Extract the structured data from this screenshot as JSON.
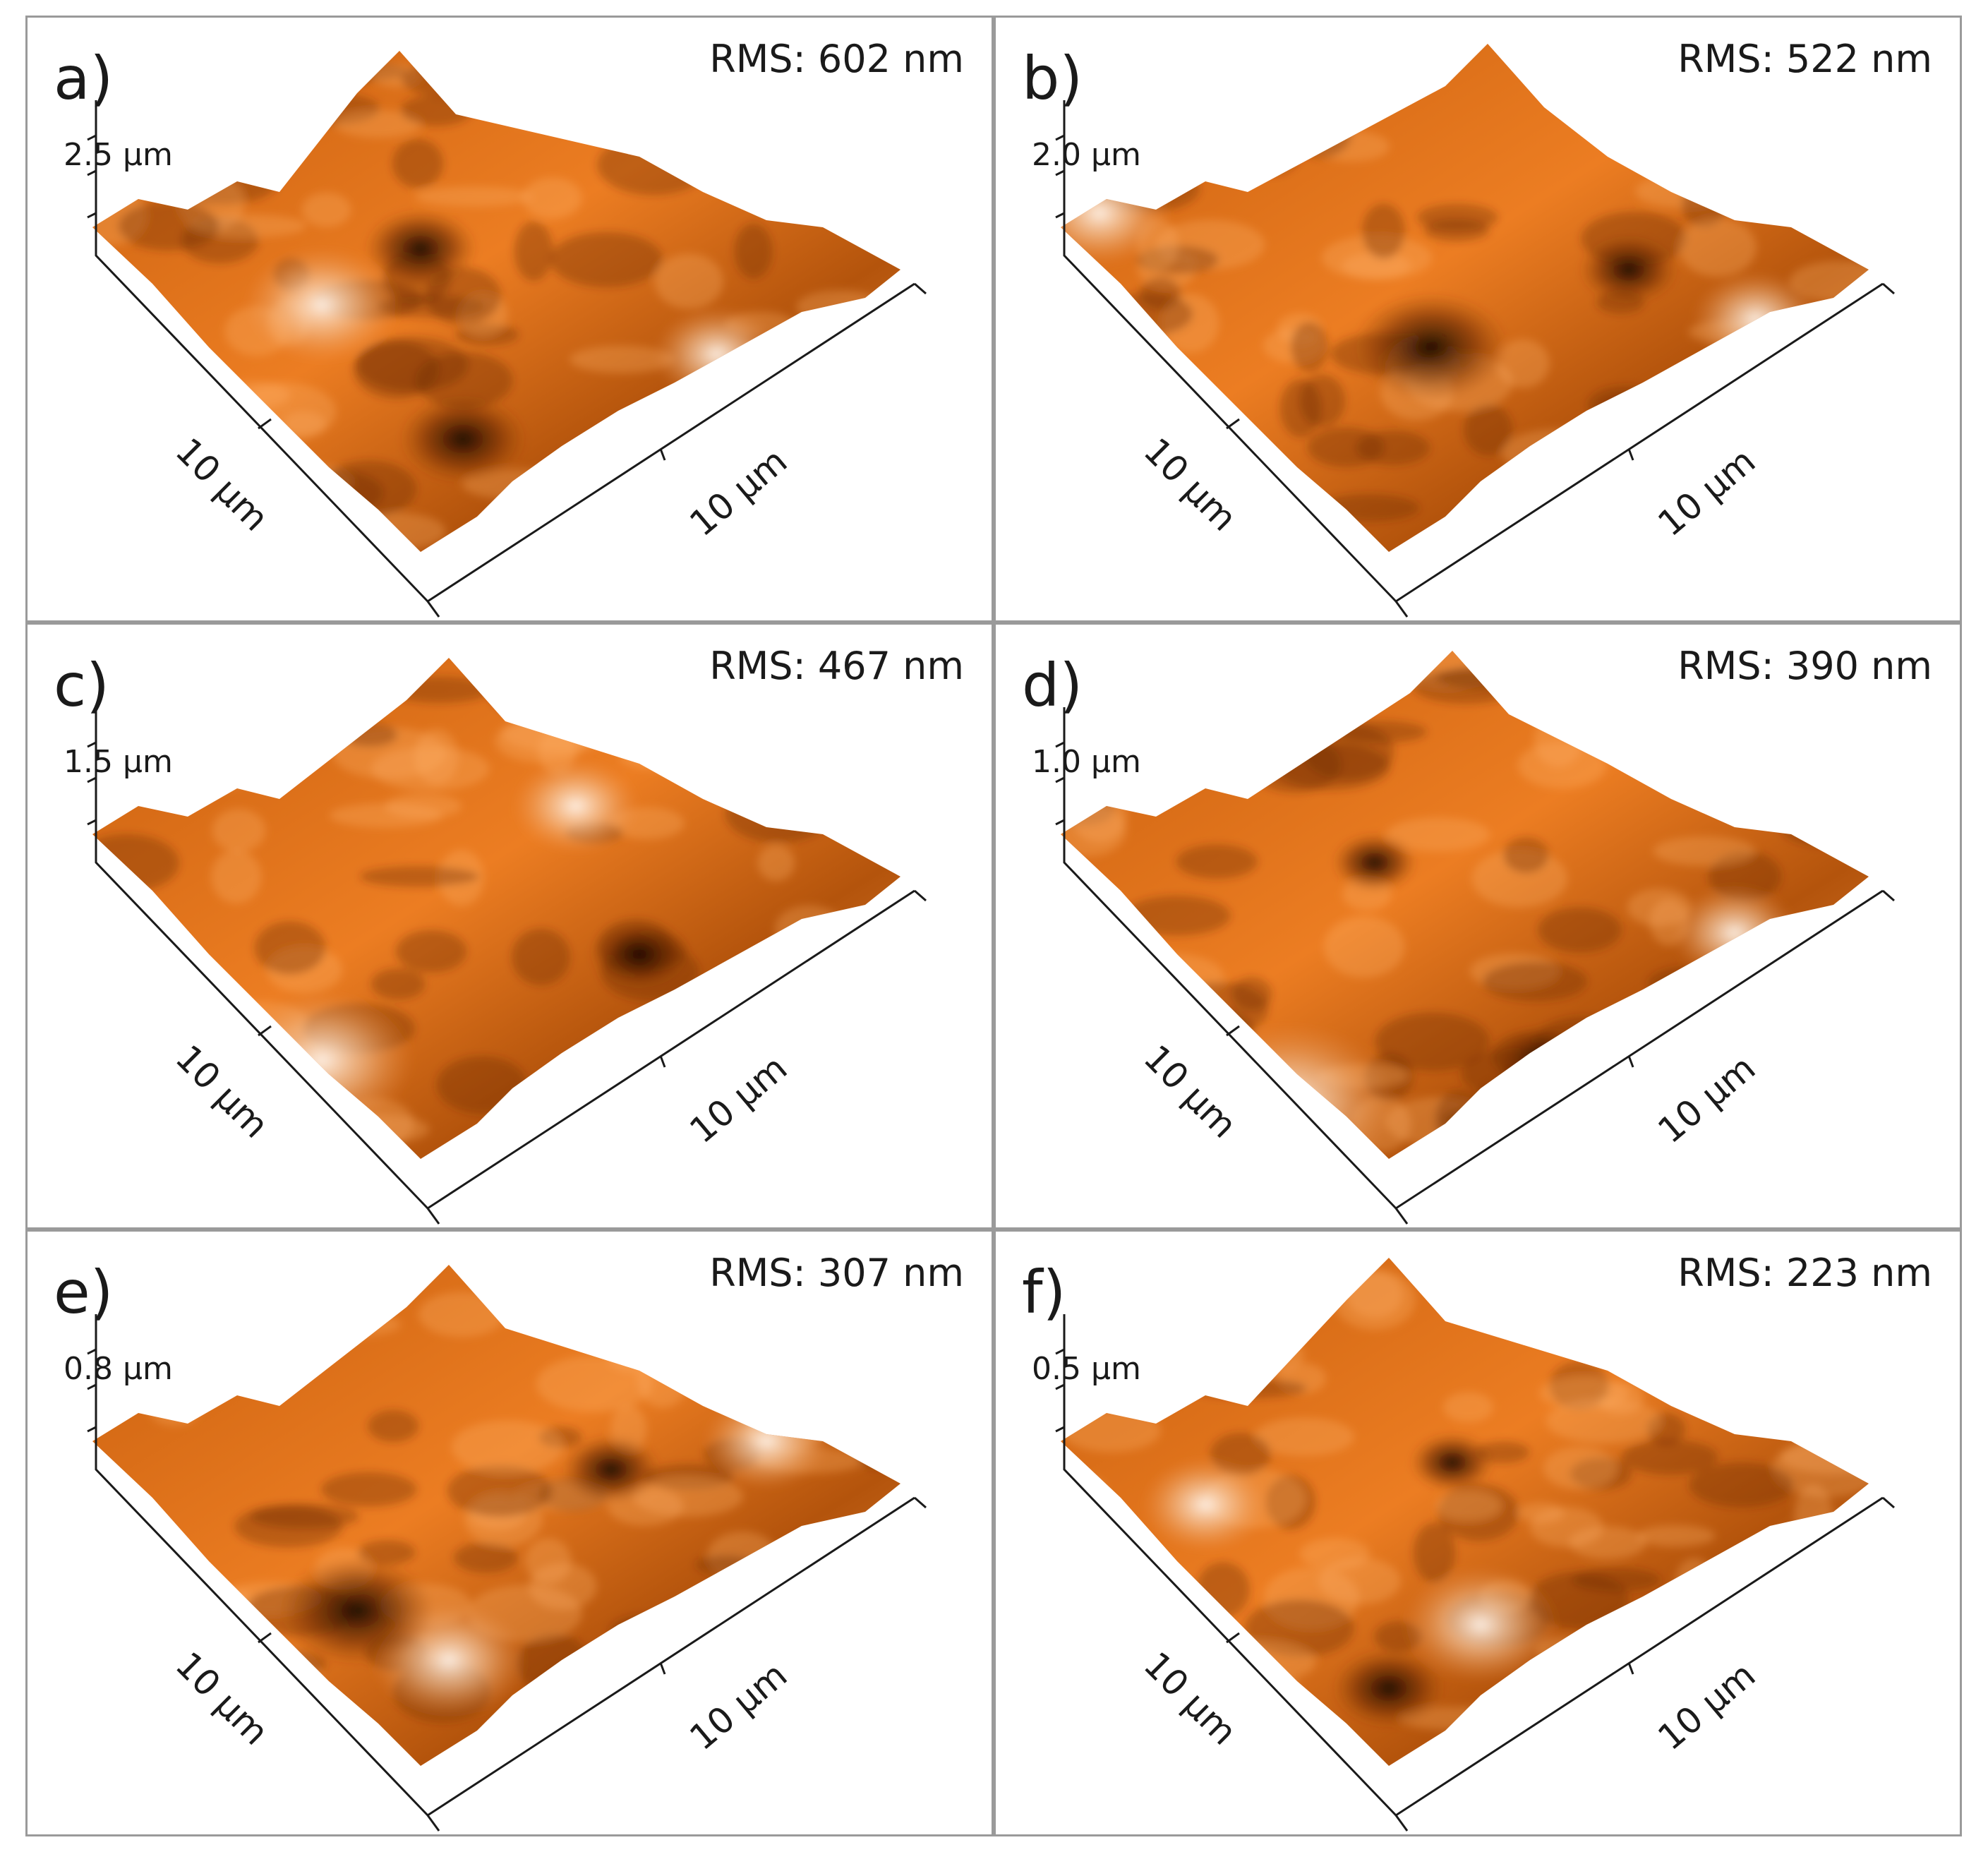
{
  "figure": {
    "panels": [
      {
        "id": "a",
        "letter": "a)",
        "rms_label": "RMS: 602 nm",
        "z_max_label": "2.5 µm",
        "x_label": "10 µm",
        "y_label": "10 µm",
        "rms_nm": 602,
        "z_max_um": 2.5
      },
      {
        "id": "b",
        "letter": "b)",
        "rms_label": "RMS: 522 nm",
        "z_max_label": "2.0 µm",
        "x_label": "10 µm",
        "y_label": "10 µm",
        "rms_nm": 522,
        "z_max_um": 2.0
      },
      {
        "id": "c",
        "letter": "c)",
        "rms_label": "RMS: 467 nm",
        "z_max_label": "1.5 µm",
        "x_label": "10 µm",
        "y_label": "10 µm",
        "rms_nm": 467,
        "z_max_um": 1.5
      },
      {
        "id": "d",
        "letter": "d)",
        "rms_label": "RMS: 390 nm",
        "z_max_label": "1.0 µm",
        "x_label": "10 µm",
        "y_label": "10 µm",
        "rms_nm": 390,
        "z_max_um": 1.0
      },
      {
        "id": "e",
        "letter": "e)",
        "rms_label": "RMS: 307 nm",
        "z_max_label": "0.8 µm",
        "x_label": "10 µm",
        "y_label": "10 µm",
        "rms_nm": 307,
        "z_max_um": 0.8
      },
      {
        "id": "f",
        "letter": "f)",
        "rms_label": "RMS: 223 nm",
        "z_max_label": "0.5 µm",
        "x_label": "10 µm",
        "y_label": "10 µm",
        "rms_nm": 223,
        "z_max_um": 0.5
      }
    ],
    "colors": {
      "surface_light": "#fbf1e6",
      "surface_mid": "#e8761c",
      "surface_dark": "#7a3200",
      "surface_shadow": "#1e0d00",
      "frame": "#9a9a9a"
    }
  }
}
